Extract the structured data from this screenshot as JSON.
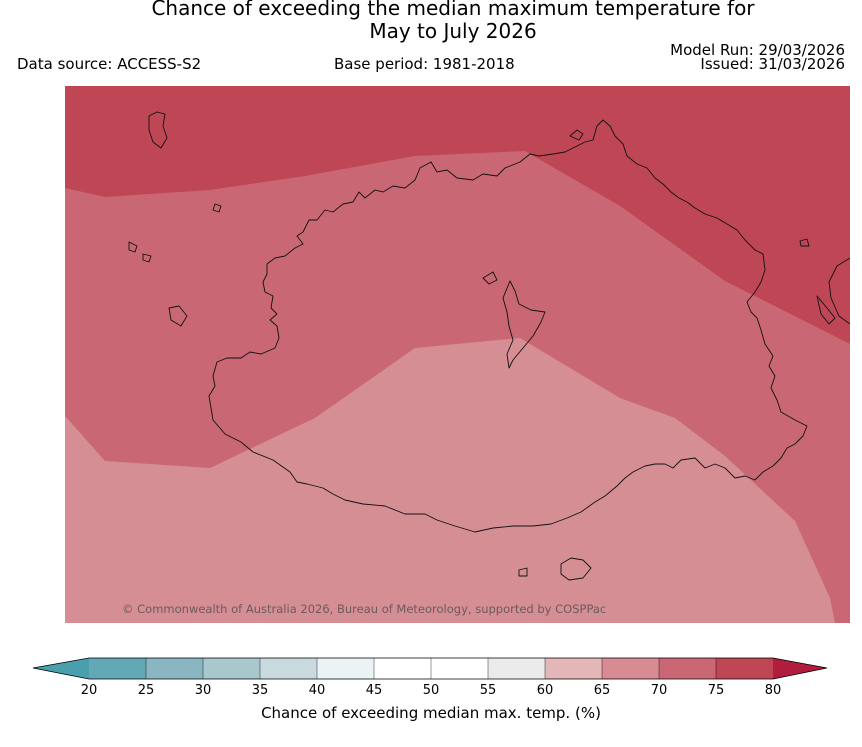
{
  "header": {
    "title_line1": "Chance of exceeding the median maximum temperature for",
    "title_line2": "May to July 2026",
    "data_source": "Data source: ACCESS-S2",
    "base_period": "Base period: 1981-2018",
    "model_run": "Model Run: 29/03/2026",
    "issued": "Issued: 31/03/2026"
  },
  "map": {
    "copyright": "© Commonwealth of Australia 2026, Bureau of Meteorology, supported by COSPPac",
    "zones": [
      {
        "range": "75-80",
        "color": "#bf4655"
      },
      {
        "range": "70-75",
        "color": "#c96874"
      },
      {
        "range": "65-70",
        "color": "#d68e95"
      }
    ]
  },
  "colorbar": {
    "label": "Chance of exceeding median max. temp. (%)",
    "ticks": [
      "20",
      "25",
      "30",
      "35",
      "40",
      "45",
      "50",
      "55",
      "60",
      "65",
      "70",
      "75",
      "80"
    ],
    "colors": [
      "#62a8b5",
      "#89b6c0",
      "#a8c8cd",
      "#c8dadd",
      "#ebf3f5",
      "#ffffff",
      "#ffffff",
      "#ebebeb",
      "#e3b7b8",
      "#d88b93",
      "#c96874",
      "#bf4655"
    ],
    "under_color": "#4a9fad",
    "over_color": "#b11e3d"
  }
}
